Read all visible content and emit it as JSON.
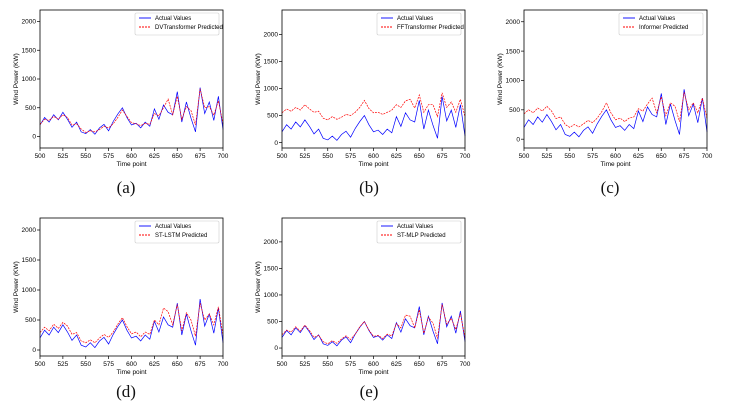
{
  "chart_data": [
    {
      "type": "line",
      "id": "a",
      "caption": "(a)",
      "xlabel": "Time point",
      "ylabel": "Wind Power (KW)",
      "xlim": [
        500,
        700
      ],
      "ylim": [
        -200,
        2200
      ],
      "xticks": [
        "500",
        "525",
        "550",
        "575",
        "600",
        "625",
        "650",
        "675",
        "700"
      ],
      "yticks": [
        "0",
        "500",
        "1000",
        "1500",
        "2000"
      ],
      "legend_position": "top-right",
      "series": [
        {
          "name": "Actual Values",
          "color": "#0000ff",
          "role": "actual"
        },
        {
          "name": "DVTransformer Predicted",
          "color": "#ff0000",
          "role": "predicted"
        }
      ]
    },
    {
      "type": "line",
      "id": "b",
      "caption": "(b)",
      "xlabel": "Time point",
      "ylabel": "Wind Power (KW)",
      "xlim": [
        500,
        700
      ],
      "ylim": [
        -100,
        2450
      ],
      "xticks": [
        "500",
        "525",
        "550",
        "575",
        "600",
        "625",
        "650",
        "675",
        "700"
      ],
      "yticks": [
        "0",
        "500",
        "1000",
        "1500",
        "2000"
      ],
      "legend_position": "top-right",
      "series": [
        {
          "name": "Actual Values",
          "color": "#0000ff",
          "role": "actual"
        },
        {
          "name": "FFTransformer Predicted",
          "color": "#ff0000",
          "role": "predicted"
        }
      ]
    },
    {
      "type": "line",
      "id": "c",
      "caption": "(c)",
      "xlabel": "Time point",
      "ylabel": "Wind Power (KW)",
      "xlim": [
        500,
        700
      ],
      "ylim": [
        -150,
        2200
      ],
      "xticks": [
        "500",
        "525",
        "550",
        "575",
        "600",
        "625",
        "650",
        "675",
        "700"
      ],
      "yticks": [
        "0",
        "500",
        "1000",
        "1500",
        "2000"
      ],
      "legend_position": "top-right",
      "series": [
        {
          "name": "Actual Values",
          "color": "#0000ff",
          "role": "actual"
        },
        {
          "name": "Informer Predicted",
          "color": "#ff0000",
          "role": "predicted"
        }
      ]
    },
    {
      "type": "line",
      "id": "d",
      "caption": "(d)",
      "xlabel": "Time point",
      "ylabel": "Wind Power (KW)",
      "xlim": [
        500,
        700
      ],
      "ylim": [
        -100,
        2200
      ],
      "xticks": [
        "500",
        "525",
        "550",
        "575",
        "600",
        "625",
        "650",
        "675",
        "700"
      ],
      "yticks": [
        "0",
        "500",
        "1000",
        "1500",
        "2000"
      ],
      "legend_position": "top-right",
      "series": [
        {
          "name": "Actual Values",
          "color": "#0000ff",
          "role": "actual"
        },
        {
          "name": "ST-LSTM Predicted",
          "color": "#ff0000",
          "role": "predicted"
        }
      ]
    },
    {
      "type": "line",
      "id": "e",
      "caption": "(e)",
      "xlabel": "Time point",
      "ylabel": "Wind Power (KW)",
      "xlim": [
        500,
        700
      ],
      "ylim": [
        -150,
        2450
      ],
      "xticks": [
        "500",
        "525",
        "550",
        "575",
        "600",
        "625",
        "650",
        "675",
        "700"
      ],
      "yticks": [
        "0",
        "500",
        "1000",
        "1500",
        "2000"
      ],
      "legend_position": "top-right",
      "series": [
        {
          "name": "Actual Values",
          "color": "#0000ff",
          "role": "actual"
        },
        {
          "name": "ST-MLP Predicted",
          "color": "#ff0000",
          "role": "predicted"
        }
      ]
    }
  ],
  "actual_series": {
    "x": [
      500,
      505,
      510,
      515,
      520,
      525,
      530,
      535,
      540,
      545,
      550,
      555,
      560,
      565,
      570,
      575,
      580,
      585,
      590,
      595,
      600,
      605,
      610,
      615,
      620,
      625,
      630,
      635,
      640,
      645,
      650,
      655,
      660,
      665,
      670,
      675,
      680,
      685,
      690,
      695,
      700
    ],
    "y": [
      200,
      330,
      250,
      380,
      290,
      420,
      300,
      160,
      250,
      80,
      50,
      120,
      40,
      150,
      210,
      100,
      260,
      390,
      500,
      330,
      200,
      230,
      150,
      250,
      180,
      480,
      300,
      550,
      420,
      380,
      780,
      250,
      600,
      320,
      80,
      850,
      400,
      600,
      280,
      700,
      120
    ]
  },
  "predicted_series": {
    "a": [
      210,
      300,
      280,
      350,
      300,
      380,
      330,
      200,
      220,
      130,
      70,
      100,
      80,
      120,
      180,
      150,
      220,
      330,
      460,
      350,
      240,
      220,
      190,
      230,
      210,
      400,
      360,
      500,
      650,
      380,
      700,
      300,
      520,
      450,
      200,
      830,
      500,
      520,
      370,
      620,
      220
    ],
    "b": [
      550,
      620,
      580,
      650,
      600,
      700,
      620,
      560,
      580,
      450,
      420,
      480,
      430,
      470,
      520,
      500,
      560,
      650,
      780,
      630,
      550,
      560,
      520,
      560,
      600,
      700,
      650,
      770,
      800,
      640,
      880,
      560,
      700,
      700,
      480,
      920,
      650,
      750,
      560,
      800,
      480
    ],
    "c": [
      430,
      500,
      450,
      530,
      480,
      560,
      480,
      350,
      380,
      250,
      200,
      250,
      210,
      260,
      320,
      280,
      360,
      470,
      620,
      450,
      330,
      360,
      300,
      360,
      380,
      520,
      480,
      600,
      700,
      450,
      720,
      400,
      620,
      560,
      300,
      800,
      500,
      620,
      450,
      700,
      350
    ],
    "d": [
      290,
      380,
      320,
      430,
      360,
      460,
      400,
      260,
      290,
      150,
      120,
      170,
      120,
      200,
      260,
      210,
      300,
      430,
      540,
      390,
      270,
      300,
      220,
      300,
      260,
      500,
      420,
      700,
      640,
      420,
      760,
      320,
      620,
      500,
      230,
      780,
      500,
      600,
      420,
      720,
      240
    ],
    "e": [
      250,
      340,
      300,
      400,
      320,
      430,
      330,
      200,
      240,
      120,
      80,
      140,
      90,
      170,
      230,
      160,
      260,
      400,
      500,
      340,
      220,
      240,
      180,
      260,
      230,
      460,
      380,
      620,
      600,
      380,
      720,
      280,
      580,
      470,
      180,
      820,
      450,
      560,
      350,
      650,
      190
    ]
  }
}
